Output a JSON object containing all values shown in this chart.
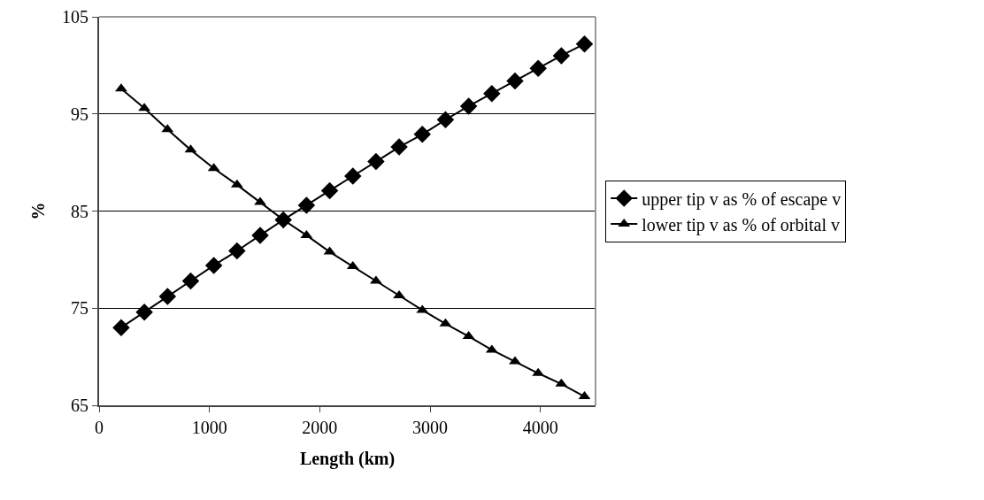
{
  "chart_data": {
    "type": "line",
    "xlabel": "Length (km)",
    "ylabel": "%",
    "x": [
      200,
      410,
      620,
      830,
      1040,
      1250,
      1460,
      1670,
      1880,
      2090,
      2300,
      2510,
      2720,
      2930,
      3140,
      3350,
      3560,
      3770,
      3980,
      4190,
      4400
    ],
    "xlim": [
      0,
      4500
    ],
    "xticks": [
      0,
      1000,
      2000,
      3000,
      4000
    ],
    "ylim": [
      65,
      105
    ],
    "yticks": [
      65,
      75,
      85,
      95,
      105
    ],
    "grid": "y",
    "legend": "right",
    "line_style": "solid",
    "series": [
      {
        "name": "upper tip v as % of escape v",
        "color": "#000000",
        "marker": "diamond",
        "values": [
          73.0,
          74.6,
          76.2,
          77.8,
          79.4,
          80.9,
          82.5,
          84.1,
          85.6,
          87.1,
          88.6,
          90.1,
          91.6,
          92.9,
          94.4,
          95.8,
          97.1,
          98.4,
          99.7,
          101.0,
          102.2
        ]
      },
      {
        "name": "lower tip v as % of orbital v",
        "color": "#000000",
        "marker": "triangle",
        "values": [
          97.6,
          95.6,
          93.4,
          91.3,
          89.4,
          87.7,
          85.9,
          84.1,
          82.5,
          80.8,
          79.3,
          77.8,
          76.3,
          74.8,
          73.4,
          72.1,
          70.7,
          69.5,
          68.3,
          67.2,
          65.9
        ]
      }
    ]
  }
}
